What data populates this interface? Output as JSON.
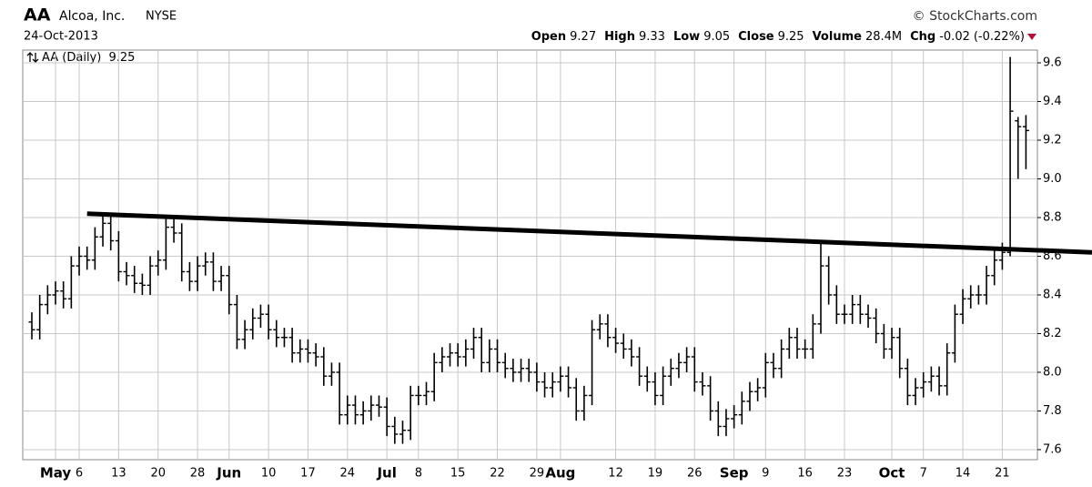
{
  "chart_data": {
    "type": "ohlc",
    "symbol": "AA",
    "company": "Alcoa, Inc.",
    "exchange": "NYSE",
    "date": "24-Oct-2013",
    "source": "© StockCharts.com",
    "quote": [
      {
        "label": "Open",
        "value": 9.27
      },
      {
        "label": "High",
        "value": 9.33
      },
      {
        "label": "Low",
        "value": 9.05
      },
      {
        "label": "Close",
        "value": 9.25
      },
      {
        "label": "Volume",
        "value": "28.4M"
      },
      {
        "label": "Chg",
        "value": -0.02,
        "pct": "(-0.22%)"
      }
    ],
    "categories": [
      null,
      null,
      null,
      "May",
      null,
      null,
      "6",
      null,
      null,
      null,
      null,
      "13",
      null,
      null,
      null,
      null,
      "20",
      null,
      null,
      null,
      null,
      "28",
      null,
      null,
      null,
      "Jun",
      null,
      null,
      null,
      null,
      "10",
      null,
      null,
      null,
      null,
      "17",
      null,
      null,
      null,
      null,
      "24",
      null,
      null,
      null,
      null,
      "Jul",
      null,
      null,
      null,
      "8",
      null,
      null,
      null,
      null,
      "15",
      null,
      null,
      null,
      null,
      "22",
      null,
      null,
      null,
      null,
      "29",
      null,
      null,
      "Aug",
      null,
      null,
      null,
      null,
      null,
      null,
      "12",
      null,
      null,
      null,
      null,
      "19",
      null,
      null,
      null,
      null,
      "26",
      null,
      null,
      null,
      null,
      "Sep",
      null,
      null,
      null,
      "9",
      null,
      null,
      null,
      null,
      "16",
      null,
      null,
      null,
      null,
      "23",
      null,
      null,
      null,
      null,
      null,
      "Oct",
      null,
      null,
      null,
      "7",
      null,
      null,
      null,
      null,
      "14",
      null,
      null,
      null,
      null,
      "21",
      null,
      null,
      null
    ],
    "series": [
      {
        "name": "AA (Daily)",
        "color": "#000000",
        "open": [
          8.26,
          8.22,
          8.35,
          8.4,
          8.42,
          8.38,
          8.55,
          8.6,
          8.58,
          8.7,
          8.77,
          8.68,
          8.52,
          8.5,
          8.46,
          8.45,
          8.55,
          8.58,
          8.75,
          8.72,
          8.52,
          8.47,
          8.55,
          8.57,
          8.47,
          8.5,
          8.35,
          8.17,
          8.22,
          8.28,
          8.3,
          8.22,
          8.18,
          8.18,
          8.1,
          8.12,
          8.1,
          8.08,
          7.98,
          8.0,
          7.78,
          7.83,
          7.78,
          7.8,
          7.83,
          7.82,
          7.72,
          7.68,
          7.7,
          7.88,
          7.88,
          7.9,
          8.05,
          8.08,
          8.1,
          8.08,
          8.12,
          8.18,
          8.05,
          8.12,
          8.05,
          8.02,
          8.0,
          8.02,
          8.0,
          7.95,
          7.92,
          7.95,
          7.98,
          7.92,
          7.8,
          7.88,
          8.22,
          8.25,
          8.18,
          8.15,
          8.12,
          8.08,
          7.98,
          7.95,
          7.88,
          7.98,
          8.02,
          8.05,
          8.08,
          7.95,
          7.93,
          7.8,
          7.72,
          7.76,
          7.78,
          7.85,
          7.9,
          7.92,
          8.05,
          8.02,
          8.12,
          8.18,
          8.12,
          8.12,
          8.25,
          8.55,
          8.4,
          8.3,
          8.3,
          8.35,
          8.3,
          8.28,
          8.2,
          8.12,
          8.18,
          8.02,
          7.88,
          7.92,
          7.95,
          7.98,
          7.93,
          8.1,
          8.3,
          8.38,
          8.4,
          8.4,
          8.5,
          8.58,
          8.62,
          9.3,
          9.27
        ],
        "high": [
          8.31,
          8.4,
          8.45,
          8.47,
          8.47,
          8.6,
          8.65,
          8.65,
          8.75,
          8.82,
          8.82,
          8.73,
          8.57,
          8.55,
          8.51,
          8.6,
          8.63,
          8.8,
          8.8,
          8.77,
          8.57,
          8.6,
          8.62,
          8.62,
          8.55,
          8.55,
          8.4,
          8.27,
          8.33,
          8.35,
          8.35,
          8.27,
          8.23,
          8.23,
          8.17,
          8.17,
          8.15,
          8.13,
          8.05,
          8.05,
          7.88,
          7.88,
          7.85,
          7.88,
          7.88,
          7.87,
          7.77,
          7.75,
          7.93,
          7.93,
          7.95,
          8.1,
          8.13,
          8.15,
          8.15,
          8.17,
          8.23,
          8.23,
          8.17,
          8.17,
          8.1,
          8.07,
          8.07,
          8.07,
          8.05,
          8.0,
          8.0,
          8.03,
          8.03,
          7.97,
          7.93,
          8.27,
          8.3,
          8.3,
          8.23,
          8.2,
          8.17,
          8.13,
          8.03,
          8.0,
          8.03,
          8.07,
          8.1,
          8.13,
          8.13,
          8.0,
          7.98,
          7.85,
          7.81,
          7.83,
          7.9,
          7.95,
          7.97,
          8.1,
          8.1,
          8.17,
          8.23,
          8.23,
          8.17,
          8.3,
          8.68,
          8.6,
          8.45,
          8.35,
          8.4,
          8.4,
          8.35,
          8.33,
          8.25,
          8.23,
          8.23,
          8.07,
          7.97,
          8.0,
          8.03,
          8.03,
          8.15,
          8.35,
          8.43,
          8.45,
          8.45,
          8.55,
          8.63,
          8.67,
          9.63,
          9.32,
          9.33
        ],
        "low": [
          8.17,
          8.17,
          8.3,
          8.35,
          8.33,
          8.33,
          8.5,
          8.53,
          8.53,
          8.65,
          8.63,
          8.47,
          8.45,
          8.41,
          8.4,
          8.4,
          8.5,
          8.53,
          8.67,
          8.47,
          8.42,
          8.42,
          8.5,
          8.42,
          8.42,
          8.3,
          8.12,
          8.12,
          8.17,
          8.23,
          8.17,
          8.13,
          8.13,
          8.05,
          8.05,
          8.05,
          8.03,
          7.93,
          7.93,
          7.73,
          7.73,
          7.73,
          7.73,
          7.75,
          7.77,
          7.67,
          7.63,
          7.63,
          7.65,
          7.83,
          7.83,
          7.85,
          8.0,
          8.03,
          8.03,
          8.03,
          8.07,
          8.0,
          8.0,
          8.0,
          7.97,
          7.95,
          7.95,
          7.95,
          7.9,
          7.87,
          7.87,
          7.9,
          7.87,
          7.75,
          7.75,
          7.83,
          8.17,
          8.13,
          8.1,
          8.07,
          8.03,
          7.93,
          7.9,
          7.83,
          7.83,
          7.93,
          7.97,
          8.0,
          7.9,
          7.88,
          7.75,
          7.67,
          7.67,
          7.71,
          7.73,
          7.8,
          7.85,
          7.87,
          7.97,
          7.97,
          8.07,
          8.07,
          8.07,
          8.07,
          8.2,
          8.35,
          8.25,
          8.25,
          8.25,
          8.25,
          8.23,
          8.15,
          8.07,
          8.07,
          7.97,
          7.83,
          7.83,
          7.87,
          7.9,
          7.88,
          7.88,
          8.05,
          8.25,
          8.33,
          8.35,
          8.35,
          8.45,
          8.53,
          8.6,
          9.0,
          9.05
        ],
        "close": [
          8.22,
          8.35,
          8.4,
          8.42,
          8.38,
          8.55,
          8.6,
          8.58,
          8.7,
          8.77,
          8.68,
          8.52,
          8.5,
          8.46,
          8.45,
          8.55,
          8.58,
          8.75,
          8.72,
          8.52,
          8.47,
          8.55,
          8.57,
          8.47,
          8.5,
          8.35,
          8.17,
          8.22,
          8.28,
          8.3,
          8.22,
          8.18,
          8.18,
          8.1,
          8.12,
          8.1,
          8.08,
          7.98,
          8.0,
          7.78,
          7.83,
          7.78,
          7.8,
          7.83,
          7.82,
          7.72,
          7.68,
          7.7,
          7.88,
          7.88,
          7.9,
          8.05,
          8.08,
          8.1,
          8.08,
          8.12,
          8.18,
          8.05,
          8.12,
          8.05,
          8.02,
          8.0,
          8.02,
          8.0,
          7.95,
          7.92,
          7.95,
          7.98,
          7.92,
          7.8,
          7.88,
          8.22,
          8.25,
          8.18,
          8.15,
          8.12,
          8.08,
          7.98,
          7.95,
          7.88,
          7.98,
          8.02,
          8.05,
          8.08,
          7.95,
          7.93,
          7.8,
          7.72,
          7.76,
          7.78,
          7.85,
          7.9,
          7.92,
          8.05,
          8.02,
          8.12,
          8.18,
          8.12,
          8.12,
          8.25,
          8.55,
          8.4,
          8.3,
          8.3,
          8.35,
          8.3,
          8.28,
          8.2,
          8.12,
          8.18,
          8.02,
          7.88,
          7.92,
          7.95,
          7.98,
          7.93,
          8.1,
          8.3,
          8.38,
          8.4,
          8.4,
          8.5,
          8.58,
          8.62,
          9.35,
          9.27,
          9.25
        ]
      }
    ],
    "trendline": [
      8.82,
      8.62
    ],
    "ylim": [
      7.548,
      9.666
    ],
    "yticks": [
      7.6,
      7.8,
      {
        "value": 8,
        "label": "8.0"
      },
      8.2,
      8.4,
      8.6,
      8.8,
      {
        "value": 9,
        "label": "9.0"
      },
      9.2,
      9.4,
      9.6
    ],
    "grid": true
  }
}
